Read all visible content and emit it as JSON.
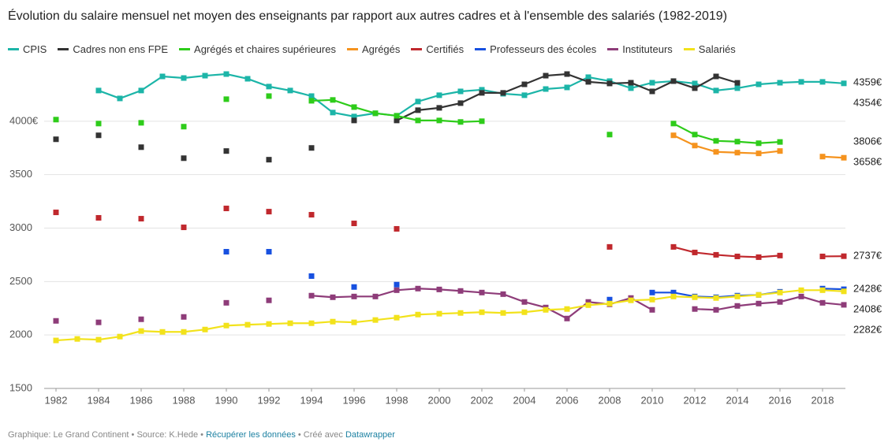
{
  "chart_data": {
    "type": "line",
    "title": "Évolution du salaire mensuel net moyen des enseignants par rapport aux autres cadres et à l'ensemble des salariés (1982-2019)",
    "x": [
      1982,
      1983,
      1984,
      1985,
      1986,
      1987,
      1988,
      1989,
      1990,
      1991,
      1992,
      1993,
      1994,
      1995,
      1996,
      1997,
      1998,
      1999,
      2000,
      2001,
      2002,
      2003,
      2004,
      2005,
      2006,
      2007,
      2008,
      2009,
      2010,
      2011,
      2012,
      2013,
      2014,
      2015,
      2016,
      2017,
      2018,
      2019
    ],
    "xlim": [
      1982,
      2019
    ],
    "xticks": [
      1982,
      1984,
      1986,
      1988,
      1990,
      1992,
      1994,
      1996,
      1998,
      2000,
      2002,
      2004,
      2006,
      2008,
      2010,
      2012,
      2014,
      2016,
      2018
    ],
    "ylim": [
      1500,
      4500
    ],
    "yticks": [
      1500,
      2000,
      2500,
      3000,
      3500,
      {
        "value": 4000,
        "label": "4000€"
      }
    ],
    "grid": true,
    "series": [
      {
        "name": "CPIS",
        "color": "#1cb5a8",
        "end_label": "4354€",
        "values": [
          null,
          null,
          4287,
          4213,
          4287,
          4419,
          4404,
          4426,
          4441,
          4397,
          4324,
          4287,
          4235,
          4081,
          4044,
          4074,
          4051,
          4184,
          4243,
          4279,
          4294,
          4257,
          4243,
          4301,
          4316,
          4412,
          4375,
          4309,
          4360,
          4375,
          4353,
          4287,
          4309,
          4345,
          4360,
          4368,
          4368,
          4354
        ]
      },
      {
        "name": "Cadres non ens FPE",
        "color": "#333333",
        "end_label": "4359€",
        "values": [
          3831,
          null,
          3868,
          null,
          3757,
          null,
          3654,
          null,
          3721,
          null,
          3640,
          null,
          3750,
          null,
          4007,
          null,
          4007,
          4103,
          4125,
          4169,
          4265,
          4265,
          4345,
          4426,
          4441,
          4368,
          4353,
          4360,
          4279,
          4375,
          4309,
          4419,
          4359,
          null,
          null,
          null,
          null,
          null
        ]
      },
      {
        "name": "Agrégés et chaires supérieures",
        "color": "#2ecc1a",
        "end_label": "3806€",
        "values": [
          4015,
          null,
          3978,
          null,
          3985,
          null,
          3949,
          null,
          4206,
          null,
          4235,
          null,
          4191,
          4199,
          4132,
          4074,
          4051,
          4007,
          4007,
          3993,
          4000,
          null,
          null,
          null,
          null,
          null,
          3875,
          null,
          null,
          3978,
          3875,
          3816,
          3809,
          3794,
          3806,
          null,
          null,
          null
        ]
      },
      {
        "name": "Agrégés",
        "color": "#f5931e",
        "end_label": "3658€",
        "values": [
          null,
          null,
          null,
          null,
          null,
          null,
          null,
          null,
          null,
          null,
          null,
          null,
          null,
          null,
          null,
          null,
          null,
          null,
          null,
          null,
          null,
          null,
          null,
          null,
          null,
          null,
          null,
          null,
          null,
          3868,
          3772,
          3713,
          3706,
          3699,
          3721,
          null,
          3669,
          3658
        ]
      },
      {
        "name": "Certifiés",
        "color": "#c0282d",
        "end_label": "2737€",
        "values": [
          3147,
          null,
          3096,
          null,
          3088,
          null,
          3007,
          null,
          3184,
          null,
          3154,
          null,
          3125,
          null,
          3044,
          null,
          2993,
          null,
          null,
          null,
          null,
          null,
          null,
          null,
          null,
          null,
          2824,
          null,
          null,
          2824,
          2772,
          2750,
          2735,
          2728,
          2743,
          null,
          2735,
          2737
        ]
      },
      {
        "name": "Professeurs des écoles",
        "color": "#1750e0",
        "end_label": "2428€",
        "values": [
          null,
          null,
          null,
          null,
          null,
          null,
          null,
          null,
          2779,
          null,
          2779,
          null,
          2551,
          null,
          2449,
          null,
          2471,
          null,
          null,
          null,
          null,
          null,
          null,
          null,
          null,
          null,
          2331,
          null,
          2397,
          2397,
          2360,
          2353,
          2368,
          2375,
          2404,
          null,
          2434,
          2428
        ]
      },
      {
        "name": "Instituteurs",
        "color": "#8e3c79",
        "end_label": "2282€",
        "values": [
          2132,
          null,
          2118,
          null,
          2147,
          null,
          2169,
          null,
          2301,
          null,
          2324,
          null,
          2368,
          2353,
          2360,
          2360,
          2419,
          2434,
          2426,
          2412,
          2397,
          2382,
          2309,
          2257,
          2154,
          2309,
          2287,
          2346,
          2235,
          null,
          2243,
          2235,
          2272,
          2294,
          2309,
          2360,
          2301,
          2282
        ]
      },
      {
        "name": "Salariés",
        "color": "#f2e21b",
        "end_label": "2408€",
        "values": [
          1949,
          1963,
          1956,
          1985,
          2037,
          2029,
          2029,
          2051,
          2088,
          2096,
          2103,
          2110,
          2110,
          2125,
          2118,
          2140,
          2162,
          2191,
          2199,
          2206,
          2213,
          2206,
          2213,
          2235,
          2243,
          2279,
          2294,
          2324,
          2331,
          2360,
          2353,
          2346,
          2360,
          2375,
          2397,
          2419,
          2419,
          2408
        ]
      }
    ],
    "footer": {
      "text": "Graphique: Le Grand Continent • Source: K.Hede • ",
      "link": "Récupérer les données",
      "sep": " • Créé avec ",
      "tool": "Datawrapper"
    }
  }
}
